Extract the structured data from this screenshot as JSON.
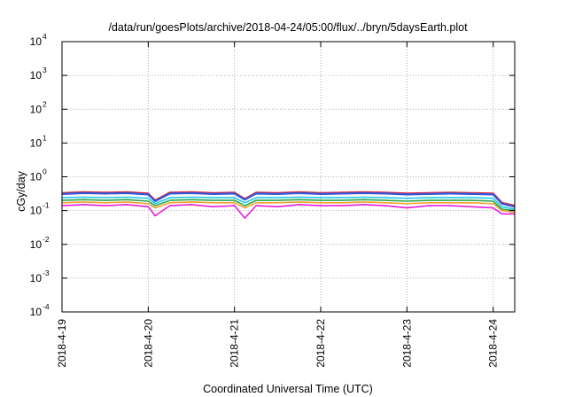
{
  "chart_data": {
    "type": "line",
    "title": "/data/run/goesPlots/archive/2018-04-24/05:00/flux/../bryn/5daysEarth.plot",
    "xlabel": "Coordinated Universal Time (UTC)",
    "ylabel": "cGy/day",
    "y_scale": "log",
    "ylim": [
      0.0001,
      10000
    ],
    "xlim": [
      0,
      5.25
    ],
    "y_ticks": [
      {
        "value": 0.0001,
        "base": "10",
        "exp": "-4"
      },
      {
        "value": 0.001,
        "base": "10",
        "exp": "-3"
      },
      {
        "value": 0.01,
        "base": "10",
        "exp": "-2"
      },
      {
        "value": 0.1,
        "base": "10",
        "exp": "-1"
      },
      {
        "value": 1,
        "base": "10",
        "exp": "0"
      },
      {
        "value": 10,
        "base": "10",
        "exp": "1"
      },
      {
        "value": 100,
        "base": "10",
        "exp": "2"
      },
      {
        "value": 1000,
        "base": "10",
        "exp": "3"
      },
      {
        "value": 10000,
        "base": "10",
        "exp": "4"
      }
    ],
    "x_ticks": [
      {
        "value": 0,
        "label": "2018-4-19"
      },
      {
        "value": 1,
        "label": "2018-4-20"
      },
      {
        "value": 2,
        "label": "2018-4-21"
      },
      {
        "value": 3,
        "label": "2018-4-22"
      },
      {
        "value": 4,
        "label": "2018-4-23"
      },
      {
        "value": 5,
        "label": "2018-4-24"
      }
    ],
    "grid": true,
    "x_days": [
      0,
      0.25,
      0.5,
      0.75,
      1,
      1.08,
      1.25,
      1.5,
      1.75,
      2,
      2.12,
      2.25,
      2.5,
      2.75,
      3,
      3.25,
      3.5,
      3.75,
      4,
      4.25,
      4.5,
      4.75,
      5,
      5.1,
      5.25
    ],
    "series": [
      {
        "color": "#e0263a",
        "values": [
          0.33,
          0.35,
          0.34,
          0.35,
          0.32,
          0.2,
          0.34,
          0.35,
          0.33,
          0.34,
          0.22,
          0.34,
          0.33,
          0.35,
          0.33,
          0.34,
          0.35,
          0.34,
          0.32,
          0.33,
          0.34,
          0.33,
          0.32,
          0.17,
          0.14
        ]
      },
      {
        "color": "#3456d8",
        "values": [
          0.31,
          0.33,
          0.32,
          0.33,
          0.3,
          0.19,
          0.32,
          0.33,
          0.31,
          0.32,
          0.21,
          0.32,
          0.31,
          0.33,
          0.31,
          0.32,
          0.33,
          0.32,
          0.3,
          0.31,
          0.32,
          0.31,
          0.3,
          0.16,
          0.13
        ]
      },
      {
        "color": "#22c8e8",
        "values": [
          0.24,
          0.25,
          0.24,
          0.25,
          0.23,
          0.16,
          0.24,
          0.25,
          0.24,
          0.24,
          0.17,
          0.24,
          0.24,
          0.25,
          0.24,
          0.24,
          0.25,
          0.24,
          0.23,
          0.24,
          0.24,
          0.24,
          0.23,
          0.13,
          0.11
        ]
      },
      {
        "color": "#2aa84a",
        "values": [
          0.2,
          0.21,
          0.2,
          0.21,
          0.19,
          0.14,
          0.2,
          0.21,
          0.2,
          0.2,
          0.14,
          0.2,
          0.2,
          0.21,
          0.2,
          0.2,
          0.21,
          0.2,
          0.19,
          0.2,
          0.2,
          0.2,
          0.19,
          0.11,
          0.1
        ]
      },
      {
        "color": "#f0a030",
        "values": [
          0.17,
          0.18,
          0.17,
          0.18,
          0.16,
          0.12,
          0.17,
          0.18,
          0.17,
          0.17,
          0.12,
          0.17,
          0.17,
          0.18,
          0.17,
          0.17,
          0.18,
          0.17,
          0.16,
          0.17,
          0.17,
          0.17,
          0.16,
          0.1,
          0.09
        ]
      },
      {
        "color": "#e81ed8",
        "values": [
          0.14,
          0.15,
          0.14,
          0.15,
          0.13,
          0.07,
          0.14,
          0.15,
          0.13,
          0.14,
          0.06,
          0.14,
          0.13,
          0.15,
          0.14,
          0.14,
          0.15,
          0.14,
          0.12,
          0.14,
          0.14,
          0.13,
          0.12,
          0.08,
          0.08
        ]
      }
    ]
  }
}
